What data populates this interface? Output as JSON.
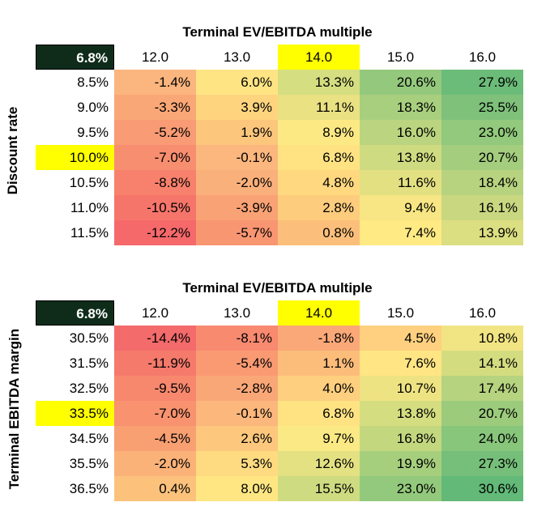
{
  "tables": [
    {
      "title": "Terminal EV/EBITDA multiple",
      "row_label": "Discount rate",
      "corner": "6.8%",
      "columns": [
        "12.0",
        "13.0",
        "14.0",
        "15.0",
        "16.0"
      ],
      "highlight_column": 2,
      "highlight_row": 3,
      "rows": [
        {
          "label": "8.5%",
          "cells": [
            {
              "text": "-1.4%",
              "color": "#fbb57e"
            },
            {
              "text": "6.0%",
              "color": "#ffe484"
            },
            {
              "text": "13.3%",
              "color": "#d5de80"
            },
            {
              "text": "20.6%",
              "color": "#94c97d"
            },
            {
              "text": "27.9%",
              "color": "#6cbc79"
            }
          ]
        },
        {
          "label": "9.0%",
          "cells": [
            {
              "text": "-3.3%",
              "color": "#faa777"
            },
            {
              "text": "3.9%",
              "color": "#fed47f"
            },
            {
              "text": "11.1%",
              "color": "#e9e182"
            },
            {
              "text": "18.3%",
              "color": "#a8cf7e"
            },
            {
              "text": "25.5%",
              "color": "#7fc17b"
            }
          ]
        },
        {
          "label": "9.5%",
          "cells": [
            {
              "text": "-5.2%",
              "color": "#f99b74"
            },
            {
              "text": "1.9%",
              "color": "#fcc67c"
            },
            {
              "text": "8.9%",
              "color": "#fde984"
            },
            {
              "text": "16.0%",
              "color": "#bbd47f"
            },
            {
              "text": "23.0%",
              "color": "#92c97c"
            }
          ]
        },
        {
          "label": "10.0%",
          "cells": [
            {
              "text": "-7.0%",
              "color": "#f88e70"
            },
            {
              "text": "-0.1%",
              "color": "#fbb77e"
            },
            {
              "text": "6.8%",
              "color": "#ffe383"
            },
            {
              "text": "13.8%",
              "color": "#cfdb80"
            },
            {
              "text": "20.7%",
              "color": "#a4cd7e"
            }
          ]
        },
        {
          "label": "10.5%",
          "cells": [
            {
              "text": "-8.8%",
              "color": "#f7816c"
            },
            {
              "text": "-2.0%",
              "color": "#fab07b"
            },
            {
              "text": "4.8%",
              "color": "#ffd880"
            },
            {
              "text": "11.6%",
              "color": "#e3e082"
            },
            {
              "text": "18.4%",
              "color": "#b7d37f"
            }
          ]
        },
        {
          "label": "11.0%",
          "cells": [
            {
              "text": "-10.5%",
              "color": "#f6756a"
            },
            {
              "text": "-3.9%",
              "color": "#f9a275"
            },
            {
              "text": "2.8%",
              "color": "#fdcc7d"
            },
            {
              "text": "9.4%",
              "color": "#f7e683"
            },
            {
              "text": "16.1%",
              "color": "#c9d880"
            }
          ]
        },
        {
          "label": "11.5%",
          "cells": [
            {
              "text": "-12.2%",
              "color": "#f5696b"
            },
            {
              "text": "-5.7%",
              "color": "#f99672"
            },
            {
              "text": "0.8%",
              "color": "#fcbf7b"
            },
            {
              "text": "7.4%",
              "color": "#ffea84"
            },
            {
              "text": "13.9%",
              "color": "#dbde81"
            }
          ]
        }
      ]
    },
    {
      "title": "Terminal EV/EBITDA multiple",
      "row_label": "Terminal EBITDA margin",
      "corner": "6.8%",
      "columns": [
        "12.0",
        "13.0",
        "14.0",
        "15.0",
        "16.0"
      ],
      "highlight_column": 2,
      "highlight_row": 3,
      "rows": [
        {
          "label": "30.5%",
          "cells": [
            {
              "text": "-14.4%",
              "color": "#f46b6b"
            },
            {
              "text": "-8.1%",
              "color": "#f88a70"
            },
            {
              "text": "-1.8%",
              "color": "#fba878"
            },
            {
              "text": "4.5%",
              "color": "#fed07f"
            },
            {
              "text": "10.8%",
              "color": "#f1e483"
            }
          ]
        },
        {
          "label": "31.5%",
          "cells": [
            {
              "text": "-11.9%",
              "color": "#f57a6c"
            },
            {
              "text": "-5.4%",
              "color": "#f99a73"
            },
            {
              "text": "1.1%",
              "color": "#fcbd7b"
            },
            {
              "text": "7.6%",
              "color": "#ffe584"
            },
            {
              "text": "14.1%",
              "color": "#d4dc80"
            }
          ]
        },
        {
          "label": "32.5%",
          "cells": [
            {
              "text": "-9.5%",
              "color": "#f7886e"
            },
            {
              "text": "-2.8%",
              "color": "#faa777"
            },
            {
              "text": "4.0%",
              "color": "#fdcf7e"
            },
            {
              "text": "10.7%",
              "color": "#eee383"
            },
            {
              "text": "17.4%",
              "color": "#b6d37f"
            }
          ]
        },
        {
          "label": "33.5%",
          "cells": [
            {
              "text": "-7.0%",
              "color": "#f8926f"
            },
            {
              "text": "-0.1%",
              "color": "#fbb77c"
            },
            {
              "text": "6.8%",
              "color": "#ffe383"
            },
            {
              "text": "13.8%",
              "color": "#d4dd80"
            },
            {
              "text": "20.7%",
              "color": "#9ccb7c"
            }
          ]
        },
        {
          "label": "34.5%",
          "cells": [
            {
              "text": "-4.5%",
              "color": "#f9a073"
            },
            {
              "text": "2.6%",
              "color": "#fdc87d"
            },
            {
              "text": "9.7%",
              "color": "#fae984"
            },
            {
              "text": "16.8%",
              "color": "#c3d77f"
            },
            {
              "text": "24.0%",
              "color": "#88c67b"
            }
          ]
        },
        {
          "label": "35.5%",
          "cells": [
            {
              "text": "-2.0%",
              "color": "#fbb279"
            },
            {
              "text": "5.3%",
              "color": "#fedb81"
            },
            {
              "text": "12.6%",
              "color": "#e3e182"
            },
            {
              "text": "19.9%",
              "color": "#a6cf7d"
            },
            {
              "text": "27.3%",
              "color": "#76bf7a"
            }
          ]
        },
        {
          "label": "36.5%",
          "cells": [
            {
              "text": "0.4%",
              "color": "#fcc27c"
            },
            {
              "text": "8.0%",
              "color": "#ffe683"
            },
            {
              "text": "15.5%",
              "color": "#cfdb80"
            },
            {
              "text": "23.0%",
              "color": "#93c97c"
            },
            {
              "text": "30.6%",
              "color": "#62b978"
            }
          ]
        }
      ]
    }
  ],
  "colors": {
    "corner_bg": "#0f2c1a",
    "highlight": "#ffff00"
  }
}
